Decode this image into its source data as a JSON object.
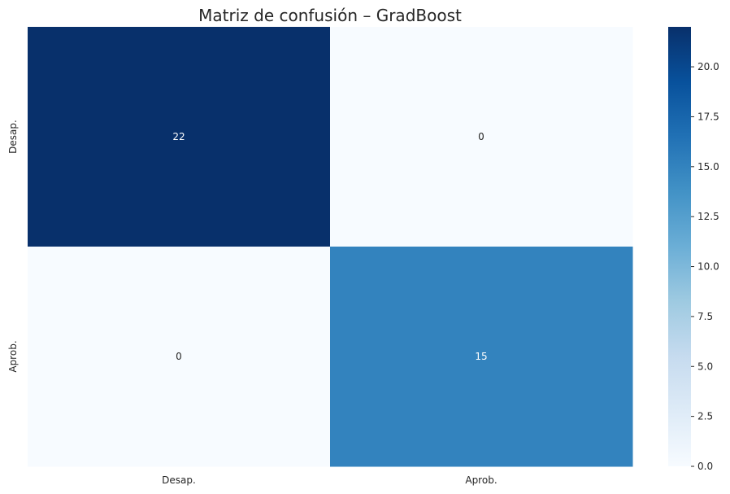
{
  "chart_data": {
    "type": "heatmap",
    "title": "Matriz de confusión – GradBoost",
    "row_labels": [
      "Desap.",
      "Aprob."
    ],
    "col_labels": [
      "Desap.",
      "Aprob."
    ],
    "values": [
      [
        22,
        0
      ],
      [
        0,
        15
      ]
    ],
    "annotations": [
      "22",
      "0",
      "0",
      "15"
    ],
    "colormap": "Blues",
    "colorbar": {
      "min": 0,
      "max": 22,
      "ticks": [
        "0.0",
        "2.5",
        "5.0",
        "7.5",
        "10.0",
        "12.5",
        "15.0",
        "17.5",
        "20.0"
      ]
    },
    "colors": {
      "low": "#f7fbff",
      "high": "#08306b",
      "annot_dark": "#262626",
      "annot_light": "#ffffff"
    }
  }
}
